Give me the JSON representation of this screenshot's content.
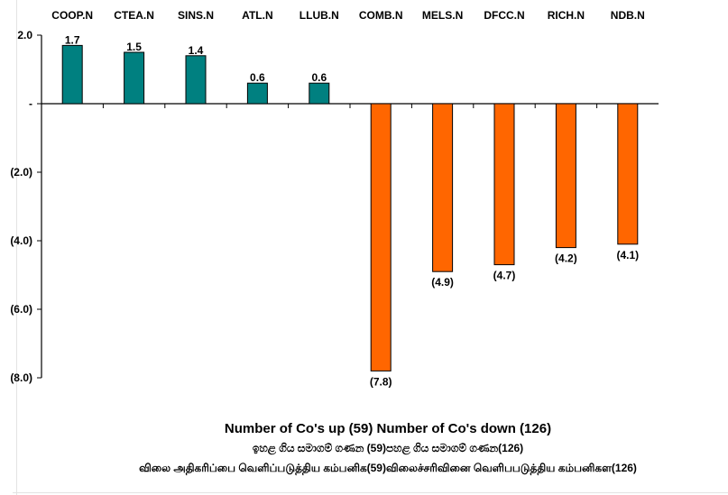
{
  "chart_data": {
    "type": "bar",
    "categories": [
      "COOP.N",
      "CTEA.N",
      "SINS.N",
      "ATL.N",
      "LLUB.N",
      "COMB.N",
      "MELS.N",
      "DFCC.N",
      "RICH.N",
      "NDB.N"
    ],
    "values": [
      1.7,
      1.5,
      1.4,
      0.6,
      0.6,
      -7.8,
      -4.9,
      -4.7,
      -4.2,
      -4.1
    ],
    "value_labels": [
      "1.7",
      "1.5",
      "1.4",
      "0.6",
      "0.6",
      "(7.8)",
      "(4.9)",
      "(4.7)",
      "(4.2)",
      "(4.1)"
    ],
    "ylim": [
      -8.0,
      2.0
    ],
    "yticks": [
      2.0,
      0,
      -2.0,
      -4.0,
      -6.0,
      -8.0
    ],
    "ytick_labels": [
      "2.0",
      "-",
      "(2.0)",
      "(4.0)",
      "(6.0)",
      "(8.0)"
    ],
    "grid": false,
    "colors": {
      "positive": "#008080",
      "negative": "#ff6600"
    }
  },
  "footer": {
    "line1": "Number of Co's up (59) Number of Co's down  (126)",
    "line2": "ඉහළ ගිය සමාගම් ගණන (59)පහළ ගිය සමාගම් ගණන(126)",
    "line3": "விலை அதிகரிப்பை வெளிப்படுத்திய கம்பனிக(59)விலைச்சரிவினை வெளிபபடுத்திய கம்பனிகள(126)"
  }
}
